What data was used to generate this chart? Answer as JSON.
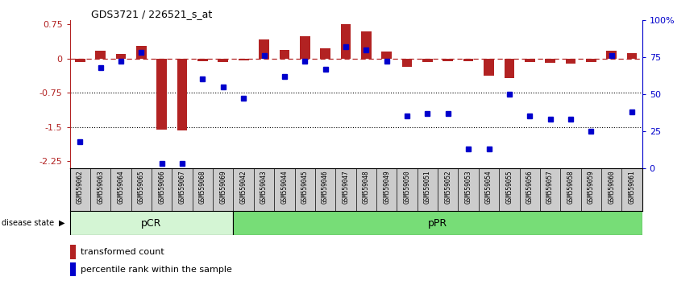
{
  "title": "GDS3721 / 226521_s_at",
  "samples": [
    "GSM559062",
    "GSM559063",
    "GSM559064",
    "GSM559065",
    "GSM559066",
    "GSM559067",
    "GSM559068",
    "GSM559069",
    "GSM559042",
    "GSM559043",
    "GSM559044",
    "GSM559045",
    "GSM559046",
    "GSM559047",
    "GSM559048",
    "GSM559049",
    "GSM559050",
    "GSM559051",
    "GSM559052",
    "GSM559053",
    "GSM559054",
    "GSM559055",
    "GSM559056",
    "GSM559057",
    "GSM559058",
    "GSM559059",
    "GSM559060",
    "GSM559061"
  ],
  "transformed_count": [
    -0.07,
    0.18,
    0.1,
    0.28,
    -1.55,
    -1.58,
    -0.05,
    -0.07,
    -0.04,
    0.42,
    0.2,
    0.5,
    0.22,
    0.75,
    0.6,
    0.15,
    -0.18,
    -0.08,
    -0.06,
    -0.06,
    -0.38,
    -0.42,
    -0.08,
    -0.09,
    -0.1,
    -0.08,
    0.18,
    0.12
  ],
  "percentile_rank": [
    18,
    68,
    72,
    78,
    3,
    3,
    60,
    55,
    47,
    76,
    62,
    72,
    67,
    82,
    80,
    72,
    35,
    37,
    37,
    13,
    13,
    50,
    35,
    33,
    33,
    25,
    76,
    38
  ],
  "pCR_count": 8,
  "pPR_count": 20,
  "group_labels": [
    "pCR",
    "pPR"
  ],
  "pCR_color": "#d4f5d4",
  "pPR_color": "#77dd77",
  "bar_color": "#b22222",
  "dot_color": "#0000cc",
  "ylim": [
    -2.4,
    0.85
  ],
  "right_ylim": [
    0,
    100
  ],
  "right_yticks": [
    0,
    25,
    50,
    75,
    100
  ],
  "right_yticklabels": [
    "0",
    "25",
    "50",
    "75",
    "100%"
  ],
  "left_yticks": [
    -2.25,
    -1.5,
    -0.75,
    0,
    0.75
  ],
  "left_yticklabels": [
    "-2.25",
    "-1.5",
    "-0.75",
    "0",
    "0.75"
  ],
  "dotted_lines": [
    -0.75,
    -1.5
  ],
  "background_color": "#ffffff"
}
